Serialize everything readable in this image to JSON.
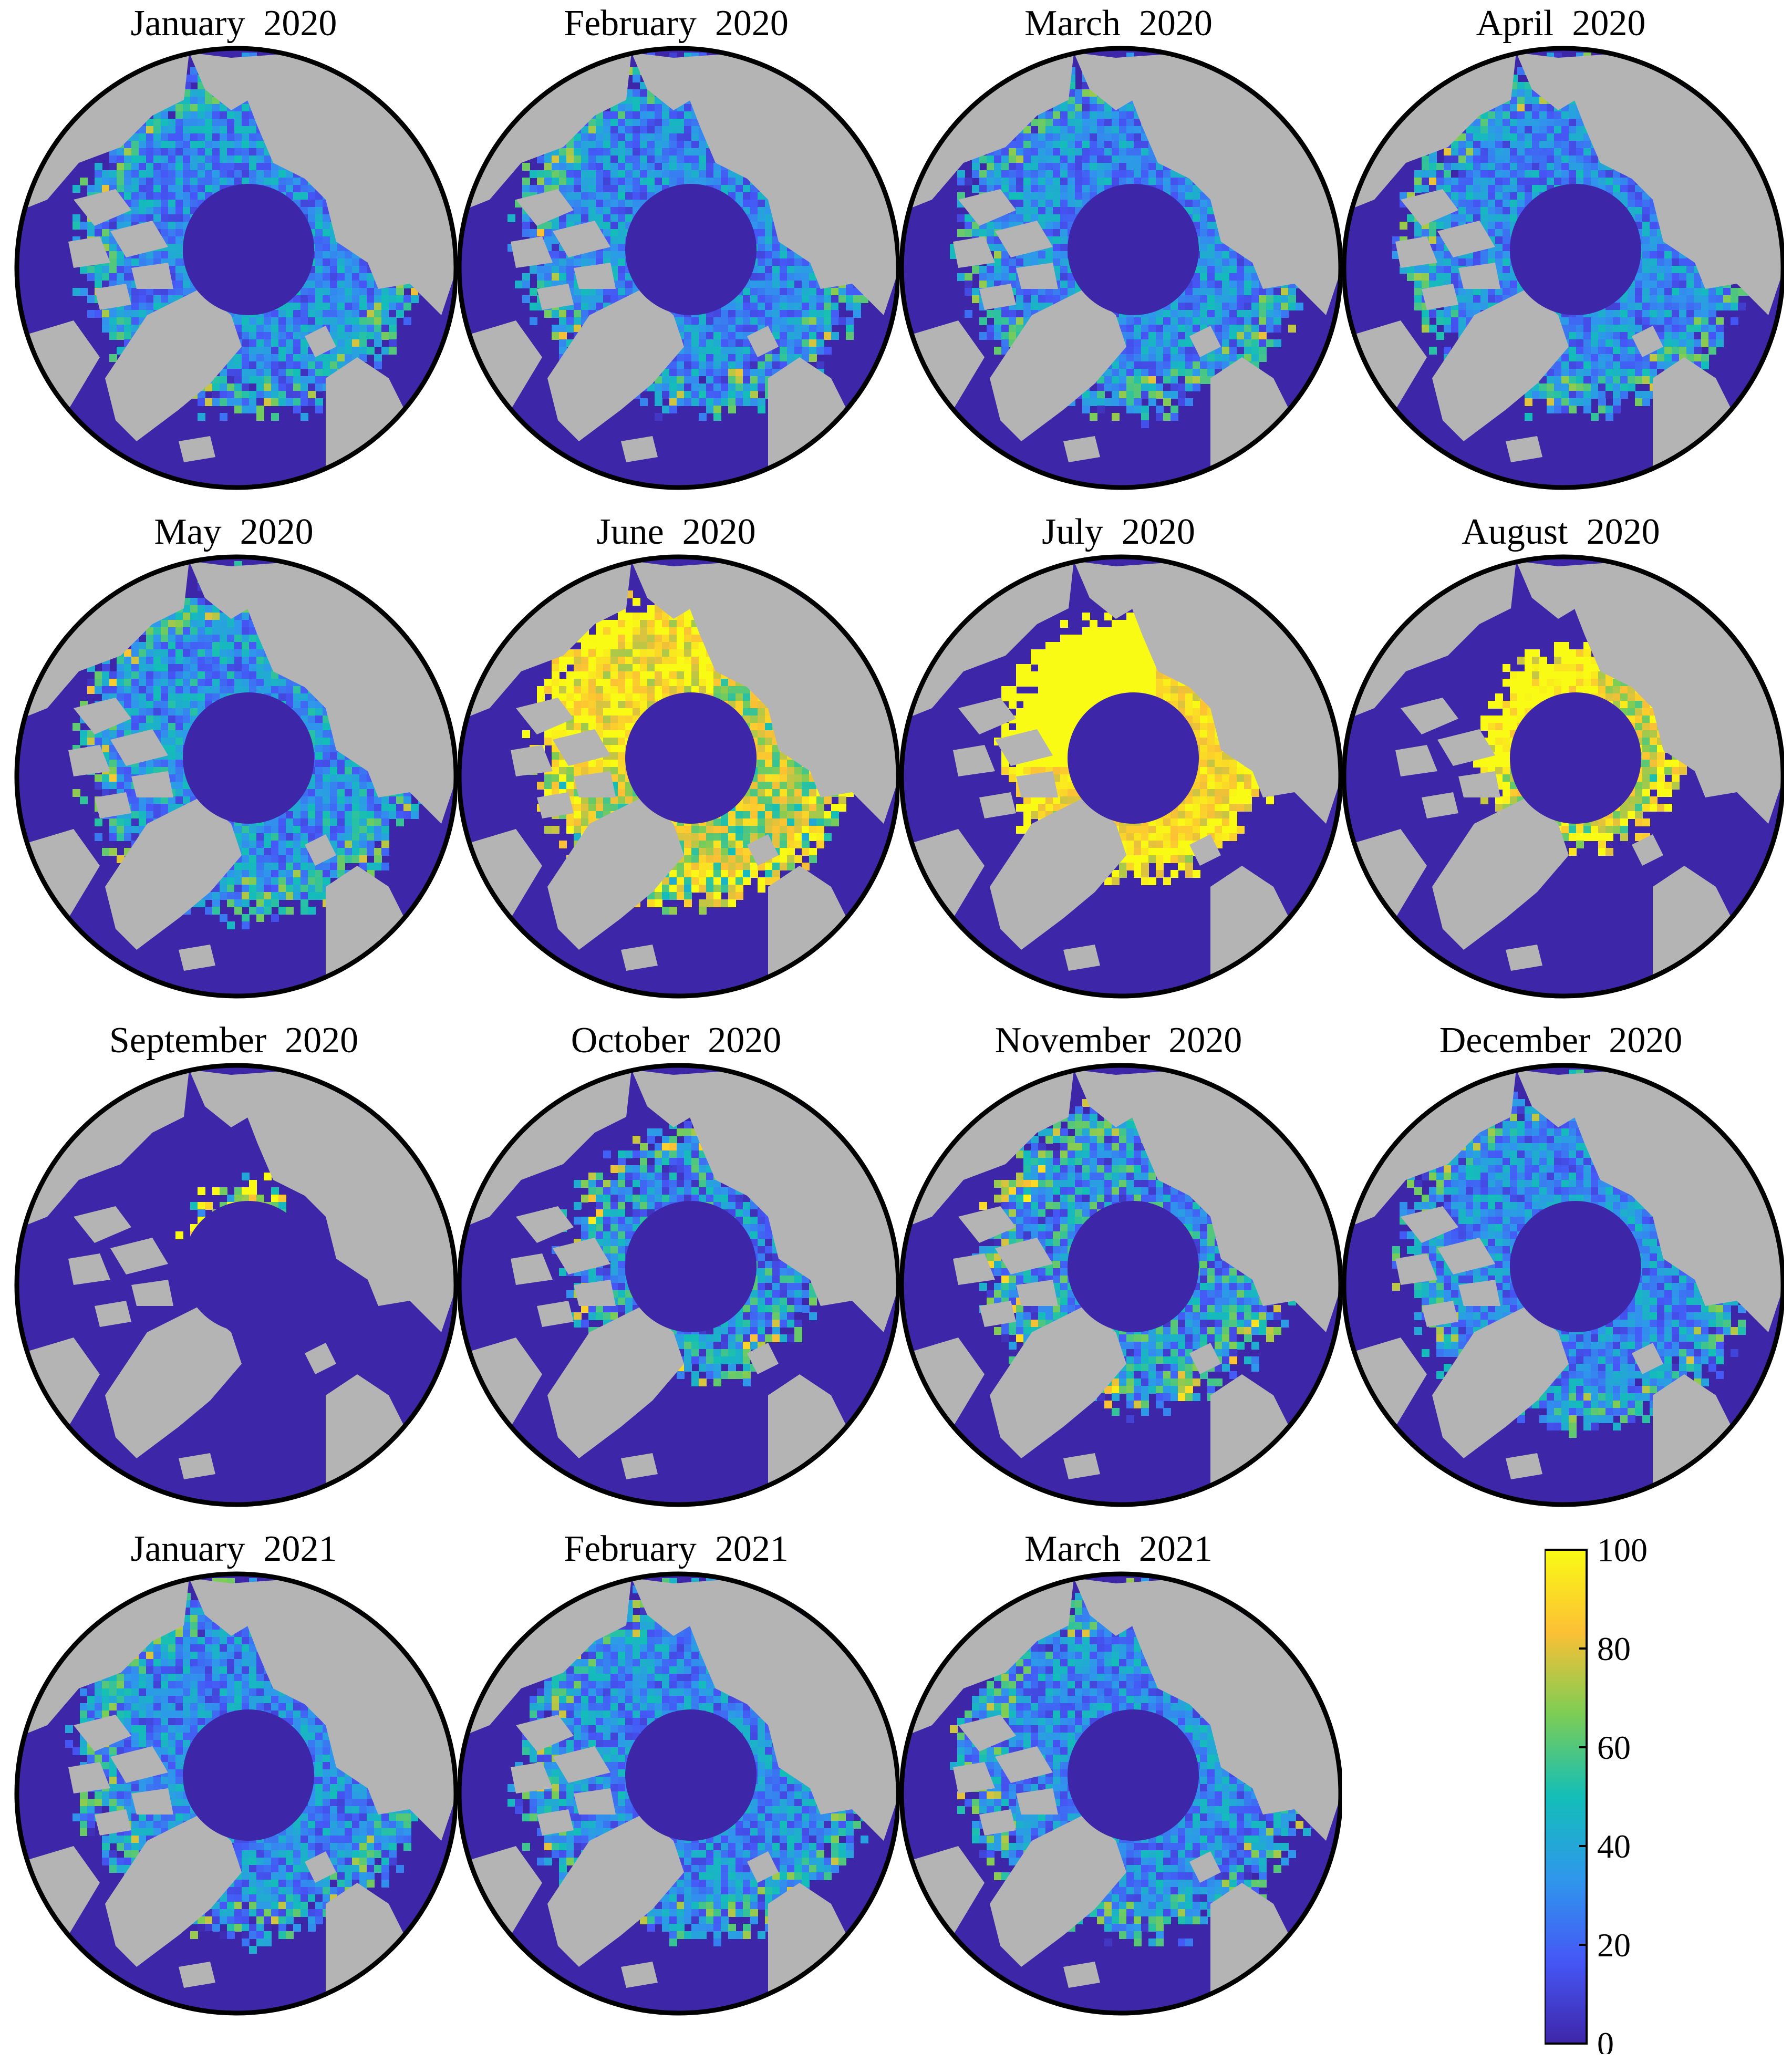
{
  "panels": [
    {
      "title": "January  2020",
      "pattern": "winter"
    },
    {
      "title": "February  2020",
      "pattern": "winter"
    },
    {
      "title": "March  2020",
      "pattern": "winter"
    },
    {
      "title": "April  2020",
      "pattern": "winter"
    },
    {
      "title": "May  2020",
      "pattern": "late-spring"
    },
    {
      "title": "June  2020",
      "pattern": "early-summer"
    },
    {
      "title": "July  2020",
      "pattern": "midsummer"
    },
    {
      "title": "August  2020",
      "pattern": "late-summer"
    },
    {
      "title": "September  2020",
      "pattern": "minimum"
    },
    {
      "title": "October  2020",
      "pattern": "refreeze"
    },
    {
      "title": "November  2020",
      "pattern": "refreeze-late"
    },
    {
      "title": "December  2020",
      "pattern": "winter"
    },
    {
      "title": "January  2021",
      "pattern": "winter"
    },
    {
      "title": "February  2021",
      "pattern": "winter"
    },
    {
      "title": "March  2021",
      "pattern": "winter"
    }
  ],
  "colorbar": {
    "min": 0,
    "max": 100,
    "ticks": [
      "0",
      "20",
      "40",
      "60",
      "80",
      "100"
    ],
    "colormap": [
      "#3e26a8",
      "#4557f6",
      "#2f97ec",
      "#13beb8",
      "#7ccd55",
      "#fcc035",
      "#f9fb14"
    ]
  },
  "colors": {
    "land": "#b4b4b4",
    "no_data_pole": "#3e26a8",
    "open_water": "#3e26a8",
    "map_outline": "#000000"
  }
}
